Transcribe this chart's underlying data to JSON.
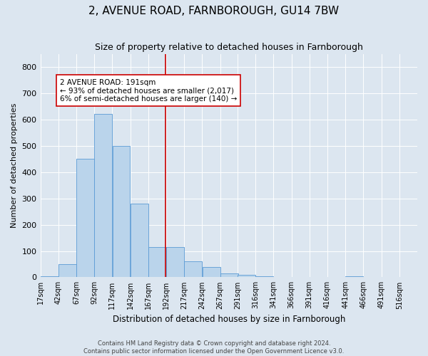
{
  "title": "2, AVENUE ROAD, FARNBOROUGH, GU14 7BW",
  "subtitle": "Size of property relative to detached houses in Farnborough",
  "xlabel": "Distribution of detached houses by size in Farnborough",
  "ylabel": "Number of detached properties",
  "footer_line1": "Contains HM Land Registry data © Crown copyright and database right 2024.",
  "footer_line2": "Contains public sector information licensed under the Open Government Licence v3.0.",
  "bar_edges": [
    17,
    42,
    67,
    92,
    117,
    142,
    167,
    192,
    217,
    242,
    267,
    291,
    316,
    341,
    366,
    391,
    416,
    441,
    466,
    491,
    516
  ],
  "bar_heights": [
    5,
    50,
    450,
    620,
    500,
    280,
    115,
    115,
    60,
    40,
    15,
    10,
    5,
    0,
    0,
    0,
    0,
    5,
    0,
    0,
    0
  ],
  "bar_color": "#bad4eb",
  "bar_edge_color": "#5b9bd5",
  "property_value": 191,
  "vline_color": "#cc0000",
  "annotation_text": "2 AVENUE ROAD: 191sqm\n← 93% of detached houses are smaller (2,017)\n6% of semi-detached houses are larger (140) →",
  "annotation_box_color": "#cc0000",
  "ylim": [
    0,
    850
  ],
  "yticks": [
    0,
    100,
    200,
    300,
    400,
    500,
    600,
    700,
    800
  ],
  "bg_color": "#dce6f0",
  "plot_bg_color": "#dce6f0",
  "title_fontsize": 11,
  "subtitle_fontsize": 9,
  "ylabel_fontsize": 8,
  "xlabel_fontsize": 8.5,
  "footer_fontsize": 6,
  "tick_fontsize": 7,
  "ytick_fontsize": 8
}
